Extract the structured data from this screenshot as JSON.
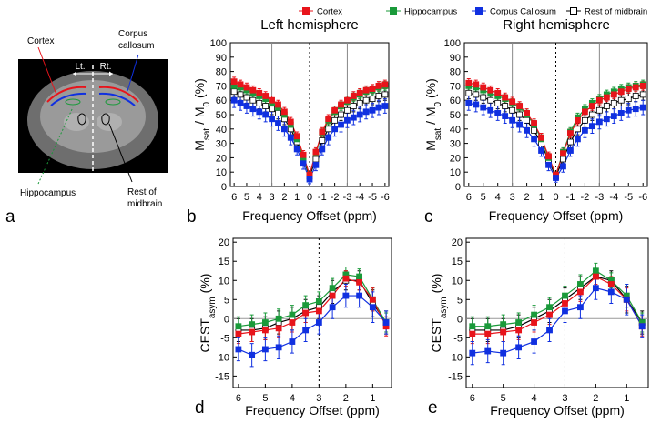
{
  "image_panel": {
    "label": "a",
    "annotations": {
      "cortex": "Cortex",
      "corpus_callosum": [
        "Corpus",
        "callosum"
      ],
      "hippocampus": "Hippocampus",
      "rest_of_midbrain": [
        "Rest of",
        "midbrain"
      ],
      "left": "Lt.",
      "right": "Rt."
    }
  },
  "chart_data": [
    {
      "type": "line",
      "panel_label": "b",
      "title": "Left hemisphere",
      "xlabel": "Frequency Offset (ppm)",
      "ylabel": [
        "M",
        "sat",
        " / M",
        "0",
        " (%)"
      ],
      "x": [
        6,
        5.5,
        5,
        4.5,
        4,
        3.5,
        3,
        2.5,
        2,
        1.5,
        1,
        0.5,
        0,
        -0.5,
        -1,
        -1.5,
        -2,
        -2.5,
        -3,
        -3.5,
        -4,
        -4.5,
        -5,
        -5.5,
        -6
      ],
      "xlim": [
        6.3,
        -6.3
      ],
      "xticks": [
        6,
        5,
        4,
        3,
        2,
        1,
        0,
        -1,
        -2,
        -3,
        -4,
        -5,
        -6
      ],
      "ylim": [
        0,
        100
      ],
      "yticks": [
        0,
        10,
        20,
        30,
        40,
        50,
        60,
        70,
        80,
        90,
        100
      ],
      "vlines": [
        {
          "value": 3,
          "style": "solid"
        },
        {
          "value": 0,
          "style": "dotted"
        },
        {
          "value": -3,
          "style": "solid"
        }
      ],
      "series": [
        {
          "name": "Cortex",
          "color": "#e8141b",
          "fill": "#e8141b",
          "values": [
            73,
            71,
            69,
            67,
            65,
            63,
            60,
            57,
            52,
            45,
            35,
            22,
            8,
            24,
            38,
            47,
            53,
            57,
            60,
            63,
            65,
            67,
            68,
            70,
            71
          ],
          "errors": [
            3,
            3,
            3,
            3,
            3,
            3,
            3,
            3,
            3,
            3,
            3,
            3,
            2,
            3,
            3,
            3,
            3,
            3,
            3,
            3,
            3,
            3,
            3,
            3,
            3
          ]
        },
        {
          "name": "Hippocampus",
          "color": "#1a9a3a",
          "fill": "#1a9a3a",
          "values": [
            70,
            69,
            67,
            65,
            63,
            61,
            58,
            55,
            50,
            43,
            33,
            20,
            8,
            23,
            37,
            46,
            52,
            56,
            59,
            62,
            64,
            66,
            67,
            69,
            70
          ],
          "errors": [
            3,
            3,
            3,
            3,
            3,
            3,
            3,
            3,
            3,
            3,
            3,
            3,
            2,
            3,
            3,
            3,
            3,
            3,
            3,
            3,
            3,
            3,
            3,
            3,
            3
          ]
        },
        {
          "name": "Corpus Callosum",
          "color": "#1030e0",
          "fill": "#1030e0",
          "values": [
            60,
            58,
            56,
            54,
            52,
            50,
            47,
            44,
            40,
            34,
            26,
            16,
            5,
            15,
            26,
            34,
            40,
            43,
            46,
            48,
            50,
            52,
            53,
            55,
            56
          ],
          "errors": [
            5,
            5,
            5,
            5,
            5,
            5,
            5,
            5,
            5,
            5,
            4,
            4,
            3,
            4,
            4,
            5,
            5,
            5,
            5,
            5,
            5,
            5,
            5,
            5,
            5
          ]
        },
        {
          "name": "Rest of midbrain",
          "color": "#000000",
          "fill": "#ffffff",
          "values": [
            66,
            64,
            62,
            60,
            58,
            56,
            54,
            51,
            47,
            40,
            31,
            19,
            7,
            19,
            32,
            40,
            46,
            50,
            53,
            56,
            58,
            60,
            61,
            63,
            64
          ],
          "errors": [
            4,
            4,
            4,
            4,
            4,
            4,
            4,
            4,
            4,
            4,
            4,
            3,
            2,
            3,
            4,
            4,
            4,
            4,
            4,
            4,
            4,
            4,
            4,
            4,
            4
          ]
        }
      ]
    },
    {
      "type": "line",
      "panel_label": "c",
      "title": "Right hemisphere",
      "xlabel": "Frequency Offset (ppm)",
      "ylabel": [
        "M",
        "sat",
        " / M",
        "0",
        " (%)"
      ],
      "x": [
        6,
        5.5,
        5,
        4.5,
        4,
        3.5,
        3,
        2.5,
        2,
        1.5,
        1,
        0.5,
        0,
        -0.5,
        -1,
        -1.5,
        -2,
        -2.5,
        -3,
        -3.5,
        -4,
        -4.5,
        -5,
        -5.5,
        -6
      ],
      "xlim": [
        6.3,
        -6.3
      ],
      "xticks": [
        6,
        5,
        4,
        3,
        2,
        1,
        0,
        -1,
        -2,
        -3,
        -4,
        -5,
        -6
      ],
      "ylim": [
        0,
        100
      ],
      "yticks": [
        0,
        10,
        20,
        30,
        40,
        50,
        60,
        70,
        80,
        90,
        100
      ],
      "vlines": [
        {
          "value": 3,
          "style": "solid"
        },
        {
          "value": 0,
          "style": "dotted"
        },
        {
          "value": -3,
          "style": "solid"
        }
      ],
      "series": [
        {
          "name": "Cortex",
          "color": "#e8141b",
          "fill": "#e8141b",
          "values": [
            72,
            71,
            69,
            67,
            65,
            62,
            59,
            56,
            51,
            44,
            34,
            21,
            8,
            23,
            37,
            46,
            52,
            56,
            60,
            62,
            64,
            66,
            68,
            69,
            70
          ],
          "errors": [
            3,
            3,
            3,
            3,
            3,
            3,
            3,
            3,
            3,
            3,
            3,
            3,
            2,
            3,
            3,
            3,
            3,
            3,
            3,
            3,
            3,
            3,
            3,
            3,
            3
          ]
        },
        {
          "name": "Hippocampus",
          "color": "#1a9a3a",
          "fill": "#1a9a3a",
          "values": [
            70,
            69,
            67,
            65,
            63,
            61,
            58,
            55,
            50,
            43,
            33,
            20,
            8,
            24,
            38,
            48,
            54,
            58,
            61,
            64,
            66,
            68,
            69,
            70,
            71
          ],
          "errors": [
            3,
            3,
            3,
            3,
            3,
            3,
            3,
            3,
            3,
            3,
            3,
            3,
            2,
            3,
            3,
            3,
            3,
            3,
            3,
            3,
            3,
            3,
            3,
            3,
            3
          ]
        },
        {
          "name": "Corpus Callosum",
          "color": "#1030e0",
          "fill": "#1030e0",
          "values": [
            58,
            57,
            55,
            53,
            51,
            49,
            46,
            43,
            39,
            33,
            25,
            15,
            6,
            14,
            25,
            33,
            39,
            42,
            45,
            47,
            49,
            51,
            53,
            54,
            55
          ],
          "errors": [
            5,
            5,
            5,
            5,
            5,
            5,
            5,
            5,
            5,
            5,
            4,
            4,
            3,
            4,
            4,
            5,
            5,
            5,
            5,
            5,
            5,
            5,
            5,
            5,
            5
          ]
        },
        {
          "name": "Rest of midbrain",
          "color": "#000000",
          "fill": "#ffffff",
          "values": [
            65,
            64,
            62,
            60,
            58,
            56,
            53,
            50,
            46,
            39,
            30,
            18,
            7,
            19,
            31,
            40,
            46,
            50,
            53,
            56,
            58,
            60,
            61,
            63,
            64
          ],
          "errors": [
            4,
            4,
            4,
            4,
            4,
            4,
            4,
            4,
            4,
            4,
            4,
            3,
            2,
            3,
            4,
            4,
            4,
            4,
            4,
            4,
            4,
            4,
            4,
            4,
            4
          ]
        }
      ]
    },
    {
      "type": "line",
      "panel_label": "d",
      "xlabel": "Frequency Offset (ppm)",
      "ylabel": [
        "CEST",
        "asym",
        " (%)"
      ],
      "x": [
        6,
        5.5,
        5,
        4.5,
        4,
        3.5,
        3,
        2.5,
        2,
        1.5,
        1,
        0.5
      ],
      "xlim": [
        6.2,
        0.3
      ],
      "xticks": [
        6,
        5,
        4,
        3,
        2,
        1
      ],
      "ylim": [
        -18,
        21
      ],
      "yticks": [
        -15,
        -10,
        -5,
        0,
        5,
        10,
        15,
        20
      ],
      "vlines": [
        {
          "value": 3,
          "style": "dotted"
        }
      ],
      "zero_line": true,
      "series": [
        {
          "name": "Cortex",
          "color": "#e8141b",
          "fill": "#e8141b",
          "values": [
            -4,
            -3.5,
            -3,
            -2.5,
            -1,
            1.5,
            2,
            6,
            10.5,
            9.5,
            5,
            -2
          ],
          "errors": [
            2.5,
            2.5,
            2.5,
            2.5,
            2.5,
            2.5,
            2.5,
            2.5,
            2,
            2,
            3,
            2.5
          ]
        },
        {
          "name": "Hippocampus",
          "color": "#1a9a3a",
          "fill": "#1a9a3a",
          "values": [
            -2,
            -1.5,
            -1,
            0,
            1,
            3.5,
            4.5,
            8,
            11.5,
            11,
            5,
            -1
          ],
          "errors": [
            2.5,
            2.5,
            2.5,
            2.5,
            2.5,
            2.5,
            2.5,
            2.5,
            2,
            2,
            3,
            2.5
          ]
        },
        {
          "name": "Corpus Callosum",
          "color": "#1030e0",
          "fill": "#1030e0",
          "values": [
            -8,
            -9.5,
            -8,
            -7.5,
            -6,
            -3,
            -1,
            3,
            6,
            6,
            3,
            -1
          ],
          "errors": [
            3,
            3,
            3,
            3,
            3,
            3,
            3,
            3,
            3,
            3,
            4,
            3
          ]
        },
        {
          "name": "Rest of midbrain",
          "color": "#000000",
          "fill": "#ffffff",
          "values": [
            -3,
            -3,
            -2.5,
            -1,
            0,
            2,
            3,
            7,
            10,
            10,
            4,
            -1
          ],
          "errors": [
            3,
            3,
            3,
            3,
            3,
            3,
            3,
            3,
            2.5,
            2.5,
            3.5,
            3
          ]
        }
      ]
    },
    {
      "type": "line",
      "panel_label": "e",
      "xlabel": "Frequency Offset (ppm)",
      "ylabel": [
        "CEST",
        "asym",
        " (%)"
      ],
      "x": [
        6,
        5.5,
        5,
        4.5,
        4,
        3.5,
        3,
        2.5,
        2,
        1.5,
        1,
        0.5
      ],
      "xlim": [
        6.2,
        0.3
      ],
      "xticks": [
        6,
        5,
        4,
        3,
        2,
        1
      ],
      "ylim": [
        -18,
        21
      ],
      "yticks": [
        -15,
        -10,
        -5,
        0,
        5,
        10,
        15,
        20
      ],
      "vlines": [
        {
          "value": 3,
          "style": "dotted"
        }
      ],
      "zero_line": true,
      "series": [
        {
          "name": "Cortex",
          "color": "#e8141b",
          "fill": "#e8141b",
          "values": [
            -4,
            -4,
            -3.5,
            -3,
            -1,
            1,
            4,
            7,
            11,
            9,
            5,
            -2
          ],
          "errors": [
            2.5,
            2.5,
            2.5,
            2.5,
            2.5,
            2.5,
            2.5,
            2.5,
            2,
            2,
            3,
            2.5
          ]
        },
        {
          "name": "Hippocampus",
          "color": "#1a9a3a",
          "fill": "#1a9a3a",
          "values": [
            -2,
            -2,
            -1.5,
            -1,
            1,
            3,
            6,
            9,
            12.5,
            10,
            6,
            -1
          ],
          "errors": [
            2.5,
            2.5,
            2.5,
            2.5,
            2.5,
            2.5,
            2.5,
            2.5,
            2,
            2,
            3,
            2.5
          ]
        },
        {
          "name": "Corpus Callosum",
          "color": "#1030e0",
          "fill": "#1030e0",
          "values": [
            -9,
            -8.5,
            -9,
            -7.5,
            -6,
            -3,
            2,
            3,
            8,
            7,
            5,
            -2
          ],
          "errors": [
            3,
            3,
            3,
            3,
            3,
            3,
            3,
            3,
            3,
            3,
            4,
            3
          ]
        },
        {
          "name": "Rest of midbrain",
          "color": "#000000",
          "fill": "#ffffff",
          "values": [
            -3,
            -3,
            -3,
            -2,
            0,
            2,
            5,
            8,
            11,
            10,
            5,
            -1
          ],
          "errors": [
            3,
            3,
            3,
            3,
            3,
            3,
            3,
            3,
            2.5,
            2.5,
            3.5,
            3
          ]
        }
      ]
    }
  ]
}
